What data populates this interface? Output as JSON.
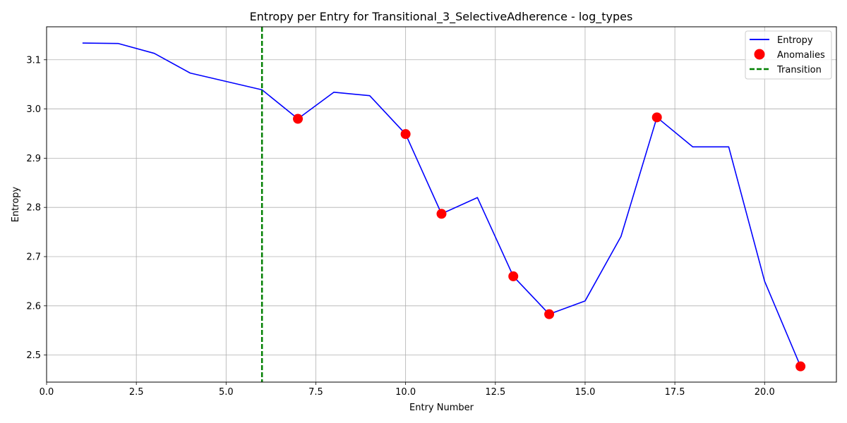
{
  "chart_data": {
    "type": "line",
    "title": "Entropy per Entry for Transitional_3_SelectiveAdherence - log_types",
    "xlabel": "Entry Number",
    "ylabel": "Entropy",
    "xlim": [
      0,
      22
    ],
    "ylim": [
      2.445,
      3.167
    ],
    "xticks": [
      0.0,
      2.5,
      5.0,
      7.5,
      10.0,
      12.5,
      15.0,
      17.5,
      20.0
    ],
    "xtick_labels": [
      "0.0",
      "2.5",
      "5.0",
      "7.5",
      "10.0",
      "12.5",
      "15.0",
      "17.5",
      "20.0"
    ],
    "yticks": [
      2.5,
      2.6,
      2.7,
      2.8,
      2.9,
      3.0,
      3.1
    ],
    "ytick_labels": [
      "2.5",
      "2.6",
      "2.7",
      "2.8",
      "2.9",
      "3.0",
      "3.1"
    ],
    "grid": true,
    "legend_position": "top-right",
    "series": [
      {
        "name": "Entropy",
        "kind": "line",
        "color": "#0000ff",
        "x": [
          1,
          2,
          3,
          4,
          5,
          6,
          7,
          8,
          9,
          10,
          11,
          12,
          13,
          14,
          15,
          16,
          17,
          18,
          19,
          20,
          21
        ],
        "y": [
          3.134,
          3.133,
          3.113,
          3.073,
          3.056,
          3.039,
          2.98,
          3.034,
          3.027,
          2.949,
          2.787,
          2.82,
          2.66,
          2.583,
          2.61,
          2.741,
          2.983,
          2.923,
          2.923,
          2.65,
          2.477
        ]
      },
      {
        "name": "Anomalies",
        "kind": "scatter",
        "color": "#ff0000",
        "x": [
          7,
          10,
          11,
          13,
          14,
          17,
          21
        ],
        "y": [
          2.98,
          2.949,
          2.787,
          2.66,
          2.583,
          2.983,
          2.477
        ]
      },
      {
        "name": "Transition",
        "kind": "vline",
        "color": "#008000",
        "x": 6
      }
    ]
  }
}
